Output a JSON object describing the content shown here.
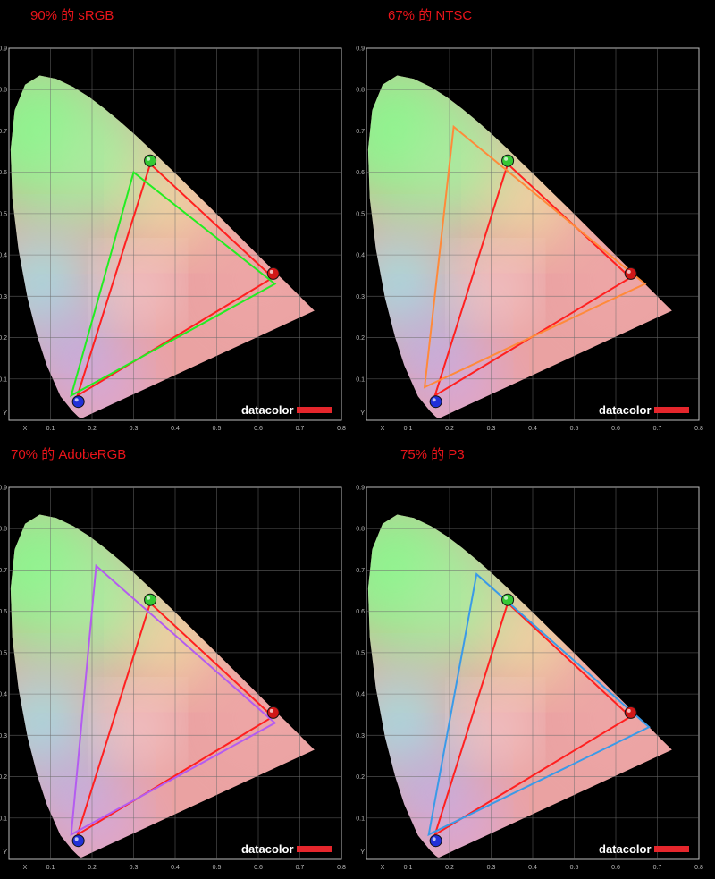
{
  "chart_data": [
    {
      "type": "scatter",
      "title": "90% 的 sRGB",
      "xlabel": "X",
      "ylabel": "Y",
      "xlim": [
        0,
        0.8
      ],
      "ylim": [
        0,
        0.9
      ],
      "x_ticks": [
        "0.1",
        "0.2",
        "0.3",
        "0.4",
        "0.5",
        "0.6",
        "0.7",
        "0.8"
      ],
      "y_ticks": [
        "0.1",
        "0.2",
        "0.3",
        "0.4",
        "0.5",
        "0.6",
        "0.7",
        "0.8",
        "0.9"
      ],
      "brand": "datacolor",
      "series": [
        {
          "color": "#ff2020",
          "points": [
            [
              0.635,
              0.345
            ],
            [
              0.34,
              0.62
            ],
            [
              0.165,
              0.06
            ]
          ]
        },
        {
          "color": "#22ee22",
          "points": [
            [
              0.64,
              0.33
            ],
            [
              0.3,
              0.6
            ],
            [
              0.15,
              0.06
            ]
          ]
        }
      ],
      "markers": [
        {
          "color": "#34c834",
          "point": [
            0.34,
            0.628
          ]
        },
        {
          "color": "#d01818",
          "point": [
            0.636,
            0.355
          ]
        },
        {
          "color": "#2030d8",
          "point": [
            0.167,
            0.045
          ]
        }
      ]
    },
    {
      "type": "scatter",
      "title": "67% 的 NTSC",
      "xlabel": "X",
      "ylabel": "Y",
      "xlim": [
        0,
        0.8
      ],
      "ylim": [
        0,
        0.9
      ],
      "x_ticks": [
        "0.1",
        "0.2",
        "0.3",
        "0.4",
        "0.5",
        "0.6",
        "0.7",
        "0.8"
      ],
      "y_ticks": [
        "0.1",
        "0.2",
        "0.3",
        "0.4",
        "0.5",
        "0.6",
        "0.7",
        "0.8",
        "0.9"
      ],
      "brand": "datacolor",
      "series": [
        {
          "color": "#ff2020",
          "points": [
            [
              0.635,
              0.345
            ],
            [
              0.34,
              0.62
            ],
            [
              0.165,
              0.06
            ]
          ]
        },
        {
          "color": "#ff8a3a",
          "points": [
            [
              0.67,
              0.33
            ],
            [
              0.21,
              0.71
            ],
            [
              0.14,
              0.08
            ]
          ]
        }
      ],
      "markers": [
        {
          "color": "#34c834",
          "point": [
            0.34,
            0.628
          ]
        },
        {
          "color": "#d01818",
          "point": [
            0.636,
            0.355
          ]
        },
        {
          "color": "#2030d8",
          "point": [
            0.167,
            0.045
          ]
        }
      ]
    },
    {
      "type": "scatter",
      "title": "70% 的 AdobeRGB",
      "xlabel": "X",
      "ylabel": "Y",
      "xlim": [
        0,
        0.8
      ],
      "ylim": [
        0,
        0.9
      ],
      "x_ticks": [
        "0.1",
        "0.2",
        "0.3",
        "0.4",
        "0.5",
        "0.6",
        "0.7",
        "0.8"
      ],
      "y_ticks": [
        "0.1",
        "0.2",
        "0.3",
        "0.4",
        "0.5",
        "0.6",
        "0.7",
        "0.8",
        "0.9"
      ],
      "brand": "datacolor",
      "series": [
        {
          "color": "#ff2020",
          "points": [
            [
              0.635,
              0.345
            ],
            [
              0.34,
              0.62
            ],
            [
              0.165,
              0.06
            ]
          ]
        },
        {
          "color": "#b45cf0",
          "points": [
            [
              0.64,
              0.33
            ],
            [
              0.21,
              0.71
            ],
            [
              0.15,
              0.06
            ]
          ]
        }
      ],
      "markers": [
        {
          "color": "#34c834",
          "point": [
            0.34,
            0.628
          ]
        },
        {
          "color": "#d01818",
          "point": [
            0.636,
            0.355
          ]
        },
        {
          "color": "#2030d8",
          "point": [
            0.167,
            0.045
          ]
        }
      ]
    },
    {
      "type": "scatter",
      "title": "75% 的 P3",
      "xlabel": "X",
      "ylabel": "Y",
      "xlim": [
        0,
        0.8
      ],
      "ylim": [
        0,
        0.9
      ],
      "x_ticks": [
        "0.1",
        "0.2",
        "0.3",
        "0.4",
        "0.5",
        "0.6",
        "0.7",
        "0.8"
      ],
      "y_ticks": [
        "0.1",
        "0.2",
        "0.3",
        "0.4",
        "0.5",
        "0.6",
        "0.7",
        "0.8",
        "0.9"
      ],
      "brand": "datacolor",
      "series": [
        {
          "color": "#ff2020",
          "points": [
            [
              0.635,
              0.345
            ],
            [
              0.34,
              0.62
            ],
            [
              0.165,
              0.06
            ]
          ]
        },
        {
          "color": "#3a9ae8",
          "points": [
            [
              0.68,
              0.32
            ],
            [
              0.265,
              0.69
            ],
            [
              0.15,
              0.06
            ]
          ]
        }
      ],
      "markers": [
        {
          "color": "#34c834",
          "point": [
            0.34,
            0.628
          ]
        },
        {
          "color": "#d01818",
          "point": [
            0.636,
            0.355
          ]
        },
        {
          "color": "#2030d8",
          "point": [
            0.167,
            0.045
          ]
        }
      ]
    }
  ]
}
